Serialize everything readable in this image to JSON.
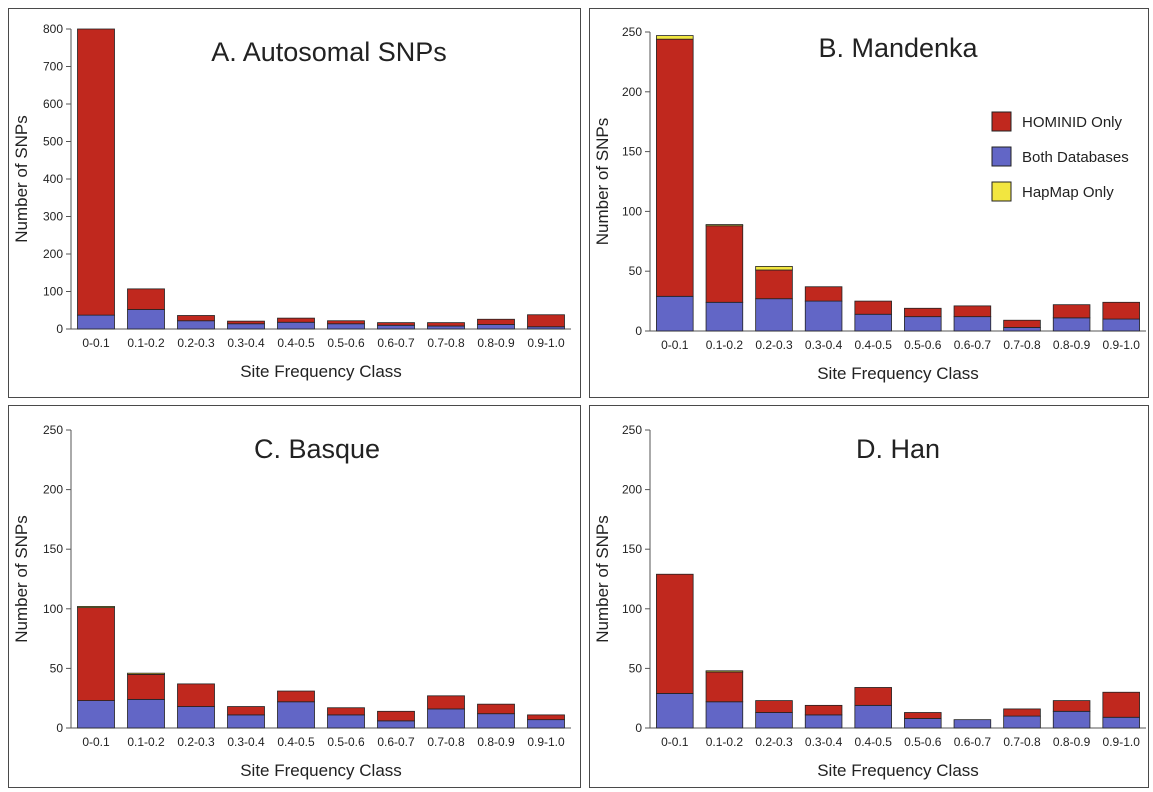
{
  "colors": {
    "hominid_only": "#c0281e",
    "both_databases": "#6266c6",
    "hapmap_only": "#f2e640",
    "bar_outline": "#222222",
    "axis": "#555555",
    "text": "#222222"
  },
  "legend": {
    "hominid_only": "HOMINID Only",
    "both_databases": "Both Databases",
    "hapmap_only": "HapMap Only"
  },
  "chart_data": [
    {
      "type": "bar",
      "stacked": true,
      "title": "A. Autosomal SNPs",
      "xlabel": "Site Frequency Class",
      "ylabel": "Number of SNPs",
      "ylim": [
        0,
        800
      ],
      "yticks": [
        0,
        100,
        200,
        300,
        400,
        500,
        600,
        700,
        800
      ],
      "categories": [
        "0-0.1",
        "0.1-0.2",
        "0.2-0.3",
        "0.3-0.4",
        "0.4-0.5",
        "0.5-0.6",
        "0.6-0.7",
        "0.7-0.8",
        "0.8-0.9",
        "0.9-1.0"
      ],
      "series": [
        {
          "name": "Both Databases",
          "values": [
            37,
            52,
            22,
            14,
            18,
            14,
            10,
            8,
            12,
            6
          ]
        },
        {
          "name": "HOMINID Only",
          "values": [
            763,
            55,
            14,
            7,
            11,
            8,
            7,
            9,
            14,
            32
          ]
        },
        {
          "name": "HapMap Only",
          "values": [
            0,
            0,
            0,
            0,
            0,
            0,
            0,
            0,
            0,
            0
          ]
        }
      ]
    },
    {
      "type": "bar",
      "stacked": true,
      "title": "B. Mandenka",
      "xlabel": "Site Frequency Class",
      "ylabel": "Number of SNPs",
      "ylim": [
        0,
        250
      ],
      "yticks": [
        0,
        50,
        100,
        150,
        200,
        250
      ],
      "categories": [
        "0-0.1",
        "0.1-0.2",
        "0.2-0.3",
        "0.3-0.4",
        "0.4-0.5",
        "0.5-0.6",
        "0.6-0.7",
        "0.7-0.8",
        "0.8-0.9",
        "0.9-1.0"
      ],
      "legend_position": "right",
      "series": [
        {
          "name": "Both Databases",
          "values": [
            29,
            24,
            27,
            25,
            14,
            12,
            12,
            3,
            11,
            10
          ]
        },
        {
          "name": "HOMINID Only",
          "values": [
            215,
            64,
            24,
            12,
            11,
            7,
            9,
            6,
            11,
            14
          ]
        },
        {
          "name": "HapMap Only",
          "values": [
            3,
            1,
            3,
            0,
            0,
            0,
            0,
            0,
            0,
            0
          ]
        }
      ]
    },
    {
      "type": "bar",
      "stacked": true,
      "title": "C. Basque",
      "xlabel": "Site Frequency Class",
      "ylabel": "Number of SNPs",
      "ylim": [
        0,
        250
      ],
      "yticks": [
        0,
        50,
        100,
        150,
        200,
        250
      ],
      "categories": [
        "0-0.1",
        "0.1-0.2",
        "0.2-0.3",
        "0.3-0.4",
        "0.4-0.5",
        "0.5-0.6",
        "0.6-0.7",
        "0.7-0.8",
        "0.8-0.9",
        "0.9-1.0"
      ],
      "series": [
        {
          "name": "Both Databases",
          "values": [
            23,
            24,
            18,
            11,
            22,
            11,
            6,
            16,
            12,
            7
          ]
        },
        {
          "name": "HOMINID Only",
          "values": [
            78,
            21,
            19,
            7,
            9,
            6,
            8,
            11,
            8,
            4
          ]
        },
        {
          "name": "HapMap Only",
          "values": [
            1,
            1,
            0,
            0,
            0,
            0,
            0,
            0,
            0,
            0
          ]
        }
      ]
    },
    {
      "type": "bar",
      "stacked": true,
      "title": "D.  Han",
      "xlabel": "Site Frequency Class",
      "ylabel": "Number of SNPs",
      "ylim": [
        0,
        250
      ],
      "yticks": [
        0,
        50,
        100,
        150,
        200,
        250
      ],
      "categories": [
        "0-0.1",
        "0.1-0.2",
        "0.2-0.3",
        "0.3-0.4",
        "0.4-0.5",
        "0.5-0.6",
        "0.6-0.7",
        "0.7-0.8",
        "0.8-0.9",
        "0.9-1.0"
      ],
      "series": [
        {
          "name": "Both Databases",
          "values": [
            29,
            22,
            13,
            11,
            19,
            8,
            7,
            10,
            14,
            9
          ]
        },
        {
          "name": "HOMINID Only",
          "values": [
            100,
            25,
            10,
            8,
            15,
            5,
            0,
            6,
            9,
            21
          ]
        },
        {
          "name": "HapMap Only",
          "values": [
            0,
            1,
            0,
            0,
            0,
            0,
            0,
            0,
            0,
            0
          ]
        }
      ]
    }
  ]
}
